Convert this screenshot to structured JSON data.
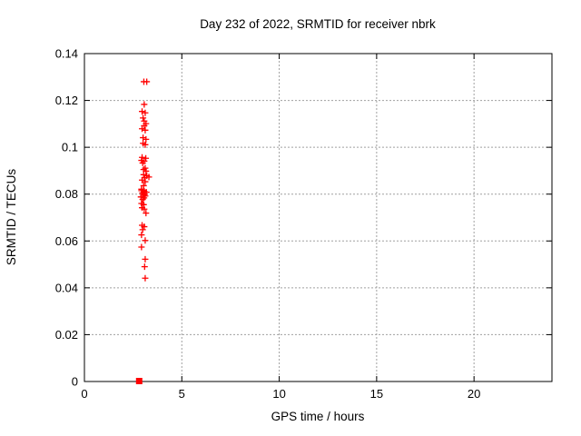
{
  "page": {
    "background": "#ffffff",
    "foreground": "#000000",
    "grid_color": "#a0a0a0",
    "accent_color": "#ff0000"
  },
  "chart_data": {
    "type": "scatter",
    "title": "Day 232 of 2022, SRMTID for receiver nbrk",
    "xlabel": "GPS time / hours",
    "ylabel": "SRMTID / TECUs",
    "xlim": [
      0,
      24
    ],
    "ylim": [
      0,
      0.14
    ],
    "xticks": [
      0,
      5,
      10,
      15,
      20
    ],
    "xtick_labels": [
      "0",
      "5",
      "10",
      "15",
      "20"
    ],
    "yticks": [
      0,
      0.02,
      0.04,
      0.06,
      0.08,
      0.1,
      0.12,
      0.14
    ],
    "ytick_labels": [
      "0",
      "0.02",
      "0.04",
      "0.06",
      "0.08",
      "0.1",
      "0.12",
      "0.14"
    ],
    "grid": true,
    "grid_style": "dashed",
    "legend": "none",
    "series": [
      {
        "name": "SRMTID samples",
        "marker": "plus",
        "color": "#ff0000",
        "points": [
          [
            3.05,
            0.128
          ],
          [
            3.2,
            0.128
          ],
          [
            3.07,
            0.1183
          ],
          [
            2.96,
            0.1153
          ],
          [
            3.12,
            0.1147
          ],
          [
            3.01,
            0.1125
          ],
          [
            3.07,
            0.1112
          ],
          [
            3.16,
            0.1101
          ],
          [
            3.07,
            0.1092
          ],
          [
            2.96,
            0.1079
          ],
          [
            3.12,
            0.1073
          ],
          [
            3.01,
            0.1041
          ],
          [
            3.16,
            0.1034
          ],
          [
            3.01,
            0.1017
          ],
          [
            3.12,
            0.1011
          ],
          [
            2.96,
            0.0957
          ],
          [
            3.15,
            0.0953
          ],
          [
            2.93,
            0.0944
          ],
          [
            3.07,
            0.0941
          ],
          [
            2.99,
            0.0933
          ],
          [
            3.12,
            0.0911
          ],
          [
            3.04,
            0.0905
          ],
          [
            3.16,
            0.0898
          ],
          [
            3.04,
            0.0883
          ],
          [
            3.2,
            0.0879
          ],
          [
            3.31,
            0.0873
          ],
          [
            3.09,
            0.087
          ],
          [
            2.96,
            0.086
          ],
          [
            3.12,
            0.0853
          ],
          [
            3.04,
            0.0836
          ],
          [
            2.93,
            0.0821
          ],
          [
            3.04,
            0.0817
          ],
          [
            2.93,
            0.0815
          ],
          [
            3.07,
            0.0812
          ],
          [
            3.18,
            0.0808
          ],
          [
            2.98,
            0.0805
          ],
          [
            3.1,
            0.08
          ],
          [
            3.02,
            0.0796
          ],
          [
            3.12,
            0.0792
          ],
          [
            2.9,
            0.0788
          ],
          [
            3.06,
            0.0784
          ],
          [
            2.99,
            0.0777
          ],
          [
            2.93,
            0.076
          ],
          [
            3.04,
            0.0755
          ],
          [
            2.96,
            0.0742
          ],
          [
            3.07,
            0.0736
          ],
          [
            3.16,
            0.0719
          ],
          [
            2.96,
            0.0667
          ],
          [
            3.07,
            0.0661
          ],
          [
            2.99,
            0.0648
          ],
          [
            2.93,
            0.0626
          ],
          [
            3.12,
            0.0602
          ],
          [
            2.93,
            0.0574
          ],
          [
            3.12,
            0.0522
          ],
          [
            3.09,
            0.049
          ],
          [
            3.12,
            0.0441
          ]
        ]
      },
      {
        "name": "zero sample",
        "marker": "filled-square",
        "color": "#ff0000",
        "points": [
          [
            2.81,
            0
          ]
        ]
      }
    ]
  }
}
